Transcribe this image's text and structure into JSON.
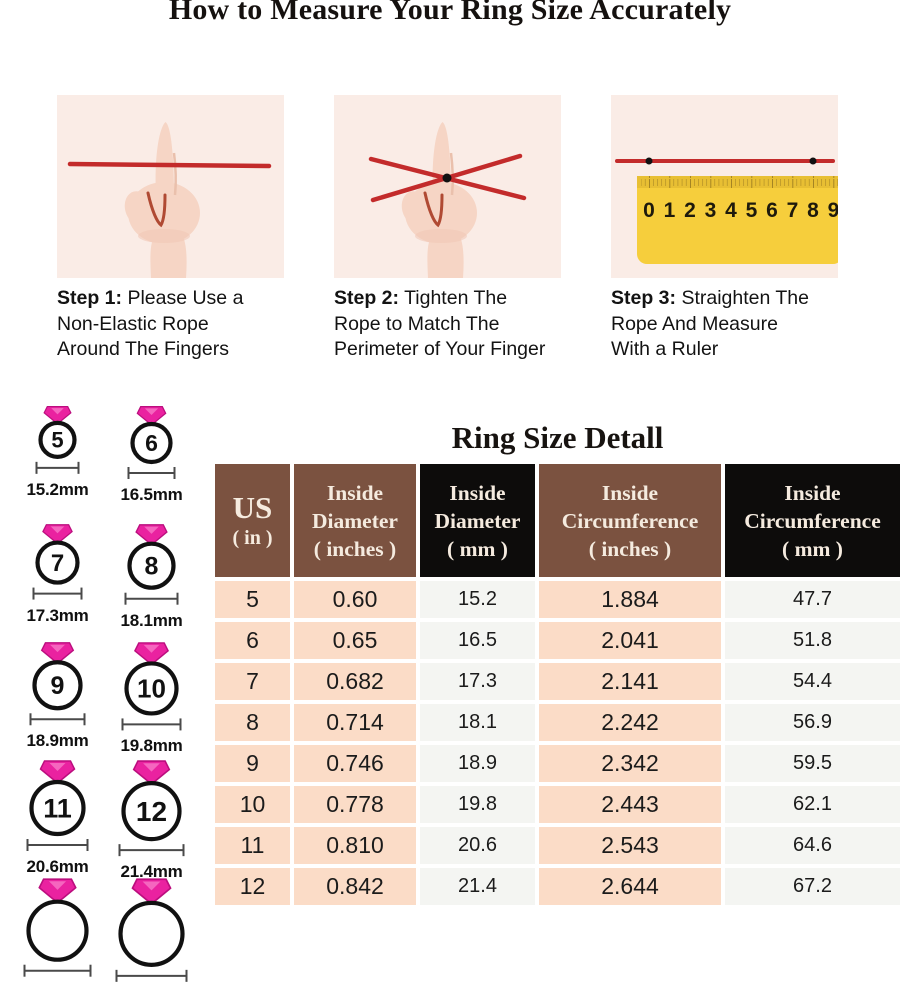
{
  "title": "How to Measure Your Ring Size Accurately",
  "steps": [
    {
      "label": "Step 1:",
      "lines": [
        "Please Use a",
        "Non-Elastic Rope",
        "Around The Fingers"
      ]
    },
    {
      "label": "Step 2:",
      "lines": [
        "Tighten The",
        "Rope to Match The",
        "Perimeter of Your Finger"
      ]
    },
    {
      "label": "Step 3:",
      "lines": [
        "Straighten The",
        "Rope And Measure",
        "With a Ruler"
      ]
    }
  ],
  "ruler_numbers": [
    "0",
    "1",
    "2",
    "3",
    "4",
    "5",
    "6",
    "7",
    "8",
    "9"
  ],
  "table_title": "Ring Size Detall",
  "chart_data": {
    "type": "table",
    "title": "Ring Size Detall",
    "columns": [
      {
        "lines": [
          "US",
          "( in )"
        ],
        "theme": "brown"
      },
      {
        "lines": [
          "Inside",
          "Diameter",
          "( inches )"
        ],
        "theme": "brown"
      },
      {
        "lines": [
          "Inside",
          "Diameter",
          "( mm )"
        ],
        "theme": "black"
      },
      {
        "lines": [
          "Inside",
          "Circumference",
          "( inches )"
        ],
        "theme": "brown"
      },
      {
        "lines": [
          "Inside",
          "Circumference",
          "( mm )"
        ],
        "theme": "black"
      }
    ],
    "rows": [
      [
        "5",
        "0.60",
        "15.2",
        "1.884",
        "47.7"
      ],
      [
        "6",
        "0.65",
        "16.5",
        "2.041",
        "51.8"
      ],
      [
        "7",
        "0.682",
        "17.3",
        "2.141",
        "54.4"
      ],
      [
        "8",
        "0.714",
        "18.1",
        "2.242",
        "56.9"
      ],
      [
        "9",
        "0.746",
        "18.9",
        "2.342",
        "59.5"
      ],
      [
        "10",
        "0.778",
        "19.8",
        "2.443",
        "62.1"
      ],
      [
        "11",
        "0.810",
        "20.6",
        "2.543",
        "64.6"
      ],
      [
        "12",
        "0.842",
        "21.4",
        "2.644",
        "67.2"
      ]
    ]
  },
  "ring_diagrams": [
    {
      "size": "5",
      "diameter_label": "15.2mm",
      "partial": false
    },
    {
      "size": "6",
      "diameter_label": "16.5mm",
      "partial": false
    },
    {
      "size": "7",
      "diameter_label": "17.3mm",
      "partial": false
    },
    {
      "size": "8",
      "diameter_label": "18.1mm",
      "partial": false
    },
    {
      "size": "9",
      "diameter_label": "18.9mm",
      "partial": false
    },
    {
      "size": "10",
      "diameter_label": "19.8mm",
      "partial": false
    },
    {
      "size": "11",
      "diameter_label": "20.6mm",
      "partial": false
    },
    {
      "size": "12",
      "diameter_label": "21.4mm",
      "partial": false
    },
    {
      "size": "",
      "diameter_label": "",
      "partial": true
    },
    {
      "size": "",
      "diameter_label": "",
      "partial": true
    }
  ],
  "colors": {
    "panel_bg": "#FAECE6",
    "rope_red": "#C32B2B",
    "ruler_yellow": "#F6CE3C",
    "header_brown": "#7B5240",
    "header_black": "#0D0C0B",
    "header_text": "#F5EBDF",
    "cell_peach": "#FBDCC7",
    "cell_light": "#F4F5F2",
    "diamond_pink": "#EA22A0"
  }
}
